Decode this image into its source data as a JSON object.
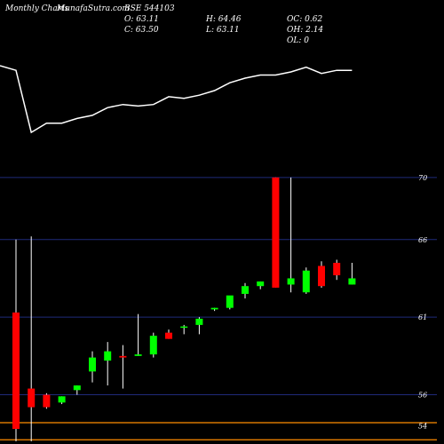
{
  "header": {
    "title": "Monthly Charts",
    "source": "MunafaSutra.com",
    "symbol": "BSE 544103",
    "open": "O: 63.11",
    "close": "C: 63.50",
    "high": "H: 64.46",
    "low": "L: 63.11",
    "oc": "OC: 0.62",
    "oh": "OH: 2.14",
    "ol": "OL: 0"
  },
  "colors": {
    "background": "#000000",
    "up": "#00ff00",
    "down": "#ff0000",
    "wick": "#ffffff",
    "ma_line": "#ffffff",
    "gridline": "#1f2a7a",
    "level_line": "#ff8c00"
  },
  "chart_data": {
    "type": "candlestick",
    "y_tick_labels": [
      "70",
      "66",
      "61",
      "56",
      "54"
    ],
    "y_ticks": [
      70,
      66,
      61,
      56,
      54
    ],
    "ylim": [
      53,
      78
    ],
    "level_lines": [
      54.2,
      53.1
    ],
    "candles": [
      {
        "open": 61.3,
        "high": 66.0,
        "low": 53.0,
        "close": 53.8
      },
      {
        "open": 56.4,
        "high": 66.2,
        "low": 53.0,
        "close": 55.2
      },
      {
        "open": 56.0,
        "high": 56.1,
        "low": 55.1,
        "close": 55.2
      },
      {
        "open": 55.5,
        "high": 55.9,
        "low": 55.4,
        "close": 55.9
      },
      {
        "open": 56.3,
        "high": 56.6,
        "low": 56.0,
        "close": 56.6
      },
      {
        "open": 57.5,
        "high": 58.8,
        "low": 56.8,
        "close": 58.4
      },
      {
        "open": 58.2,
        "high": 59.4,
        "low": 56.6,
        "close": 58.8
      },
      {
        "open": 58.5,
        "high": 59.2,
        "low": 56.4,
        "close": 58.4
      },
      {
        "open": 58.5,
        "high": 61.2,
        "low": 58.5,
        "close": 58.6
      },
      {
        "open": 58.6,
        "high": 60.0,
        "low": 58.4,
        "close": 59.8
      },
      {
        "open": 60.0,
        "high": 60.2,
        "low": 59.6,
        "close": 59.6
      },
      {
        "open": 60.4,
        "high": 60.5,
        "low": 59.9,
        "close": 60.4
      },
      {
        "open": 60.5,
        "high": 61.0,
        "low": 59.9,
        "close": 60.9
      },
      {
        "open": 61.5,
        "high": 61.6,
        "low": 61.4,
        "close": 61.6
      },
      {
        "open": 61.6,
        "high": 62.3,
        "low": 61.5,
        "close": 62.4
      },
      {
        "open": 62.5,
        "high": 63.2,
        "low": 62.2,
        "close": 63.0
      },
      {
        "open": 63.0,
        "high": 63.3,
        "low": 62.8,
        "close": 63.3
      },
      {
        "open": 70.0,
        "high": 70.0,
        "low": 62.9,
        "close": 62.9
      },
      {
        "open": 63.1,
        "high": 70.0,
        "low": 62.6,
        "close": 63.5
      },
      {
        "open": 62.6,
        "high": 64.2,
        "low": 62.5,
        "close": 64.0
      },
      {
        "open": 64.3,
        "high": 64.6,
        "low": 62.9,
        "close": 63.0
      },
      {
        "open": 64.5,
        "high": 64.7,
        "low": 63.4,
        "close": 63.7
      },
      {
        "open": 63.1,
        "high": 64.5,
        "low": 63.1,
        "close": 63.5
      }
    ],
    "ma_values": [
      76.9,
      72.9,
      73.5,
      73.5,
      73.8,
      74.0,
      74.5,
      74.7,
      74.6,
      74.7,
      75.2,
      75.1,
      75.3,
      75.6,
      76.1,
      76.4,
      76.6,
      76.6,
      76.8,
      77.1,
      76.7,
      76.9,
      76.9
    ]
  }
}
